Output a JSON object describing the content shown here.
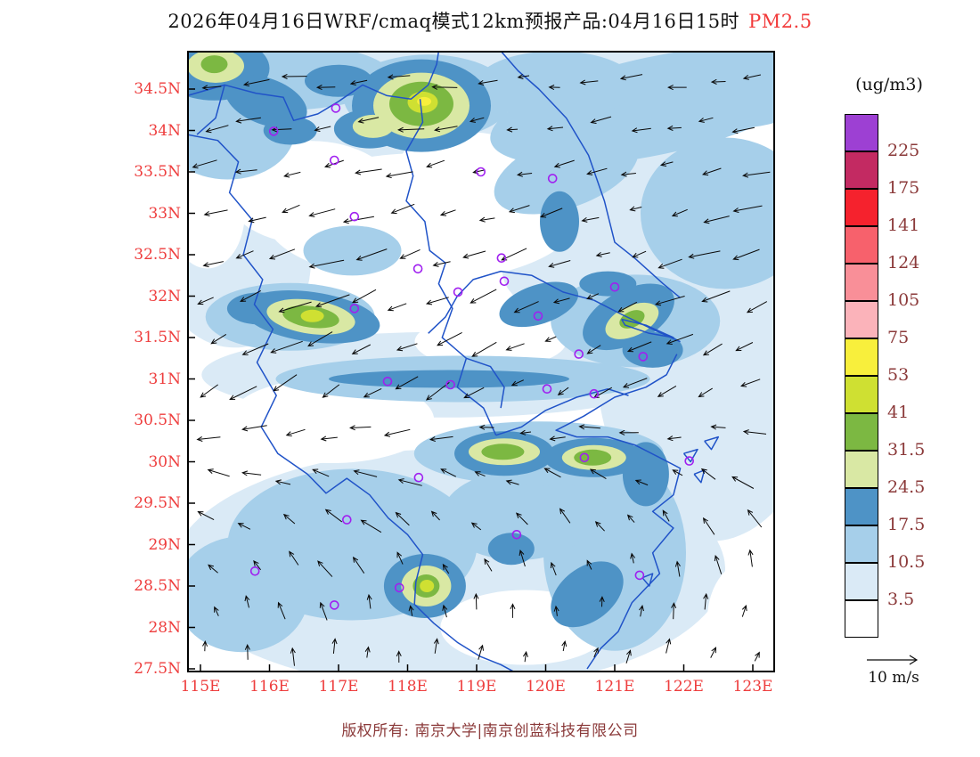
{
  "title": {
    "main": "2026年04月16日WRF/cmaq模式12km预报产品:04月16日15时",
    "pollutant": "PM2.5",
    "pollutant_color": "#f23b3b"
  },
  "footer": {
    "copyright": "版权所有: 南京大学|南京创蓝科技有限公司"
  },
  "axes": {
    "lat_labels": [
      "34.5N",
      "34N",
      "33.5N",
      "33N",
      "32.5N",
      "32N",
      "31.5N",
      "31N",
      "30.5N",
      "30N",
      "29.5N",
      "29N",
      "28.5N",
      "28N",
      "27.5N"
    ],
    "lon_labels": [
      "115E",
      "116E",
      "117E",
      "118E",
      "119E",
      "120E",
      "121E",
      "122E",
      "123E"
    ],
    "label_color": "#ee3d3d"
  },
  "colorbar": {
    "units": "(ug/m3)",
    "label_color": "#8b3a3a",
    "colors_top_to_bottom": [
      "#9d40d3",
      "#c32a62",
      "#f5222d",
      "#f7616c",
      "#f98f98",
      "#fbb3ba",
      "#f8ef3c",
      "#cfe032",
      "#7cb842",
      "#d9e8a4",
      "#4e93c6",
      "#a6cfea",
      "#daeaf6",
      "#ffffff"
    ],
    "labels_top_to_bottom": [
      "225",
      "175",
      "141",
      "124",
      "105",
      "75",
      "53",
      "41",
      "31.5",
      "24.5",
      "17.5",
      "10.5",
      "3.5"
    ]
  },
  "wind_legend": {
    "label": "10 m/s"
  },
  "wind_field": {
    "rows": 14,
    "cols": 15,
    "row_angles": [
      185,
      189,
      193,
      196,
      198,
      202,
      205,
      210,
      185,
      158,
      136,
      116,
      96,
      80
    ],
    "row_col_delta": [
      0,
      0,
      0,
      0,
      0,
      0,
      0,
      -0.5,
      -1,
      -1.5,
      -2,
      -2.5,
      -2.5,
      -2
    ],
    "row_lengths": [
      26,
      26,
      27,
      29,
      33,
      34,
      32,
      30,
      26,
      24,
      22,
      20,
      18,
      17
    ]
  },
  "stations": [
    [
      116.06,
      33.99
    ],
    [
      116.96,
      34.27
    ],
    [
      116.94,
      33.64
    ],
    [
      119.06,
      33.5
    ],
    [
      120.1,
      33.42
    ],
    [
      117.23,
      32.96
    ],
    [
      119.36,
      32.46
    ],
    [
      118.15,
      32.33
    ],
    [
      118.73,
      32.05
    ],
    [
      119.4,
      32.18
    ],
    [
      121.0,
      32.11
    ],
    [
      117.23,
      31.85
    ],
    [
      119.89,
      31.76
    ],
    [
      120.48,
      31.3
    ],
    [
      121.41,
      31.27
    ],
    [
      117.71,
      30.97
    ],
    [
      120.02,
      30.88
    ],
    [
      120.7,
      30.82
    ],
    [
      118.62,
      30.93
    ],
    [
      120.56,
      30.05
    ],
    [
      122.08,
      30.01
    ],
    [
      118.16,
      29.81
    ],
    [
      117.12,
      29.3
    ],
    [
      119.58,
      29.12
    ],
    [
      115.79,
      28.68
    ],
    [
      117.88,
      28.48
    ],
    [
      121.36,
      28.63
    ],
    [
      116.94,
      28.27
    ]
  ],
  "map": {
    "line_color": "#2053c8",
    "level_colors": {
      "white": "#ffffff",
      "pale_blue": "#daeaf6",
      "light_blue": "#a6cfea",
      "steel_blue": "#4e93c6",
      "pale_green": "#d9e8a4",
      "green": "#7cb842",
      "yellow_green": "#cfe032",
      "yellow": "#f8ef3c"
    },
    "fills": [
      [
        119.0,
        34.5,
        345,
        70,
        0,
        "pale_blue"
      ],
      [
        122.4,
        31.3,
        130,
        210,
        0,
        "pale_blue"
      ],
      [
        118.6,
        28.7,
        310,
        135,
        0,
        "pale_blue"
      ],
      [
        118.5,
        31.05,
        270,
        48,
        0,
        "pale_blue"
      ],
      [
        115.5,
        32.4,
        85,
        95,
        0,
        "pale_blue"
      ],
      [
        120.4,
        33.4,
        155,
        65,
        0,
        "pale_blue"
      ],
      [
        116.5,
        33.95,
        120,
        55,
        0,
        "pale_blue"
      ],
      [
        120.6,
        32.3,
        95,
        55,
        0,
        "pale_blue"
      ],
      [
        118.2,
        32.95,
        175,
        72,
        0,
        "white"
      ],
      [
        116.6,
        33.25,
        95,
        58,
        0,
        "white"
      ],
      [
        116.9,
        30.5,
        115,
        48,
        0,
        "white"
      ],
      [
        119.7,
        28.0,
        95,
        42,
        0,
        "white"
      ],
      [
        119.2,
        31.45,
        85,
        30,
        0,
        "white"
      ],
      [
        120.6,
        29.55,
        55,
        28,
        0,
        "white"
      ],
      [
        115.1,
        33.0,
        42,
        62,
        0,
        "white"
      ],
      [
        118.95,
        33.6,
        60,
        35,
        0,
        "white"
      ],
      [
        121.6,
        34.3,
        190,
        55,
        -12,
        "light_blue"
      ],
      [
        122.6,
        33.0,
        95,
        85,
        0,
        "light_blue"
      ],
      [
        122.8,
        34.55,
        85,
        48,
        0,
        "light_blue"
      ],
      [
        116.1,
        34.65,
        130,
        38,
        0,
        "light_blue"
      ],
      [
        118.3,
        34.4,
        95,
        48,
        0,
        "light_blue"
      ],
      [
        120.15,
        34.55,
        90,
        38,
        0,
        "light_blue"
      ],
      [
        120.3,
        33.5,
        85,
        40,
        -20,
        "light_blue"
      ],
      [
        118.8,
        31.0,
        210,
        26,
        0,
        "light_blue"
      ],
      [
        117.2,
        32.55,
        55,
        28,
        0,
        "light_blue"
      ],
      [
        117.2,
        29.0,
        140,
        85,
        0,
        "light_blue"
      ],
      [
        121.0,
        28.9,
        80,
        110,
        0,
        "light_blue"
      ],
      [
        119.6,
        29.35,
        85,
        50,
        0,
        "light_blue"
      ],
      [
        115.6,
        28.4,
        75,
        65,
        0,
        "light_blue"
      ],
      [
        116.3,
        31.75,
        95,
        38,
        0,
        "light_blue"
      ],
      [
        121.3,
        31.7,
        95,
        52,
        0,
        "light_blue"
      ],
      [
        119.9,
        30.1,
        140,
        36,
        0,
        "light_blue"
      ],
      [
        115.4,
        34.0,
        75,
        55,
        0,
        "light_blue"
      ],
      [
        123.05,
        28.1,
        55,
        70,
        0,
        "white"
      ],
      [
        115.2,
        34.75,
        62,
        36,
        0,
        "steel_blue"
      ],
      [
        115.95,
        34.35,
        48,
        26,
        20,
        "steel_blue"
      ],
      [
        117.0,
        34.6,
        38,
        18,
        0,
        "steel_blue"
      ],
      [
        118.2,
        34.3,
        78,
        52,
        0,
        "steel_blue"
      ],
      [
        117.45,
        34.02,
        40,
        22,
        0,
        "steel_blue"
      ],
      [
        116.3,
        34.0,
        30,
        16,
        0,
        "steel_blue"
      ],
      [
        116.6,
        31.75,
        78,
        28,
        8,
        "steel_blue"
      ],
      [
        115.85,
        31.85,
        36,
        18,
        0,
        "steel_blue"
      ],
      [
        118.6,
        31.0,
        135,
        10,
        0,
        "steel_blue"
      ],
      [
        119.9,
        31.9,
        46,
        22,
        -18,
        "steel_blue"
      ],
      [
        120.2,
        32.9,
        22,
        34,
        0,
        "steel_blue"
      ],
      [
        120.9,
        32.15,
        32,
        14,
        0,
        "steel_blue"
      ],
      [
        121.2,
        31.75,
        56,
        30,
        -28,
        "steel_blue"
      ],
      [
        121.55,
        31.35,
        34,
        20,
        0,
        "steel_blue"
      ],
      [
        119.4,
        30.1,
        56,
        25,
        0,
        "steel_blue"
      ],
      [
        120.7,
        30.05,
        56,
        22,
        0,
        "steel_blue"
      ],
      [
        121.45,
        29.85,
        26,
        36,
        0,
        "steel_blue"
      ],
      [
        118.25,
        28.5,
        46,
        36,
        0,
        "steel_blue"
      ],
      [
        120.6,
        28.4,
        46,
        30,
        -38,
        "steel_blue"
      ],
      [
        119.5,
        28.95,
        26,
        18,
        0,
        "steel_blue"
      ],
      [
        118.2,
        34.3,
        54,
        37,
        0,
        "pale_green"
      ],
      [
        116.6,
        31.75,
        50,
        19,
        8,
        "pale_green"
      ],
      [
        119.4,
        30.12,
        40,
        15,
        0,
        "pale_green"
      ],
      [
        120.7,
        30.05,
        36,
        14,
        0,
        "pale_green"
      ],
      [
        118.27,
        28.5,
        28,
        23,
        0,
        "pale_green"
      ],
      [
        115.22,
        34.78,
        32,
        19,
        0,
        "pale_green"
      ],
      [
        117.5,
        34.05,
        23,
        13,
        0,
        "pale_green"
      ],
      [
        121.25,
        31.7,
        32,
        17,
        -25,
        "pale_green"
      ],
      [
        118.2,
        34.32,
        36,
        25,
        0,
        "green"
      ],
      [
        116.6,
        31.75,
        32,
        12,
        8,
        "green"
      ],
      [
        119.38,
        30.12,
        24,
        9,
        0,
        "green"
      ],
      [
        120.68,
        30.05,
        21,
        9,
        0,
        "green"
      ],
      [
        118.27,
        28.5,
        15,
        13,
        0,
        "green"
      ],
      [
        121.25,
        31.72,
        15,
        9,
        -25,
        "green"
      ],
      [
        115.2,
        34.8,
        15,
        10,
        0,
        "green"
      ],
      [
        118.22,
        34.34,
        17,
        12,
        0,
        "yellow_green"
      ],
      [
        116.62,
        31.76,
        13,
        7,
        0,
        "yellow_green"
      ],
      [
        118.28,
        28.5,
        8,
        7,
        0,
        "yellow_green"
      ],
      [
        118.24,
        34.35,
        8,
        5,
        0,
        "yellow"
      ]
    ],
    "lines": [
      [
        [
          119.35,
          34.96
        ],
        [
          119.6,
          34.72
        ],
        [
          119.9,
          34.5
        ],
        [
          120.3,
          34.15
        ],
        [
          120.62,
          33.7
        ],
        [
          120.85,
          33.15
        ],
        [
          121.0,
          32.65
        ],
        [
          121.3,
          32.45
        ],
        [
          121.7,
          32.15
        ],
        [
          121.95,
          31.98
        ]
      ],
      [
        [
          118.3,
          31.55
        ],
        [
          118.55,
          31.75
        ],
        [
          118.72,
          32.0
        ],
        [
          118.95,
          32.2
        ],
        [
          119.35,
          32.3
        ],
        [
          119.8,
          32.25
        ],
        [
          120.25,
          32.05
        ],
        [
          120.7,
          31.95
        ],
        [
          121.1,
          31.78
        ],
        [
          121.55,
          31.6
        ],
        [
          121.95,
          31.45
        ]
      ],
      [
        [
          121.9,
          31.3
        ],
        [
          121.75,
          31.05
        ],
        [
          121.45,
          30.9
        ],
        [
          121.0,
          30.78
        ],
        [
          120.55,
          30.55
        ],
        [
          120.15,
          30.38
        ],
        [
          120.45,
          30.3
        ],
        [
          120.9,
          30.3
        ],
        [
          121.3,
          30.2
        ],
        [
          121.65,
          30.05
        ],
        [
          121.95,
          29.92
        ],
        [
          121.85,
          29.6
        ],
        [
          121.55,
          29.4
        ],
        [
          121.85,
          29.2
        ],
        [
          121.55,
          28.9
        ],
        [
          121.65,
          28.65
        ],
        [
          121.25,
          28.3
        ],
        [
          121.05,
          27.95
        ],
        [
          120.8,
          27.75
        ],
        [
          120.6,
          27.5
        ]
      ],
      [
        [
          114.81,
          34.42
        ],
        [
          115.35,
          34.55
        ],
        [
          115.8,
          34.45
        ],
        [
          116.2,
          34.4
        ],
        [
          116.35,
          34.12
        ],
        [
          116.7,
          34.2
        ],
        [
          117.0,
          34.35
        ],
        [
          117.35,
          34.55
        ],
        [
          117.7,
          34.42
        ],
        [
          118.05,
          34.38
        ],
        [
          118.3,
          34.55
        ],
        [
          118.42,
          34.8
        ],
        [
          118.45,
          34.96
        ]
      ],
      [
        [
          114.81,
          33.95
        ],
        [
          115.25,
          33.88
        ],
        [
          115.55,
          33.62
        ],
        [
          115.42,
          33.25
        ],
        [
          115.75,
          32.92
        ],
        [
          115.62,
          32.5
        ],
        [
          115.9,
          32.2
        ],
        [
          115.78,
          31.9
        ],
        [
          116.05,
          31.6
        ],
        [
          115.82,
          31.2
        ],
        [
          116.1,
          30.8
        ],
        [
          115.88,
          30.42
        ],
        [
          116.12,
          30.1
        ],
        [
          116.55,
          29.85
        ],
        [
          116.82,
          29.62
        ],
        [
          117.12,
          29.8
        ],
        [
          117.45,
          29.6
        ],
        [
          117.72,
          29.32
        ],
        [
          118.0,
          29.12
        ],
        [
          118.22,
          28.88
        ],
        [
          118.12,
          28.55
        ],
        [
          118.1,
          28.28
        ],
        [
          118.38,
          28.05
        ],
        [
          118.72,
          27.82
        ],
        [
          119.05,
          27.65
        ],
        [
          119.35,
          27.55
        ],
        [
          119.55,
          27.46
        ]
      ],
      [
        [
          118.18,
          34.38
        ],
        [
          118.22,
          34.1
        ],
        [
          117.98,
          33.75
        ],
        [
          118.08,
          33.45
        ],
        [
          117.98,
          33.15
        ],
        [
          118.25,
          32.9
        ],
        [
          118.32,
          32.55
        ],
        [
          118.55,
          32.4
        ],
        [
          118.45,
          32.15
        ],
        [
          118.65,
          31.85
        ],
        [
          118.5,
          31.5
        ],
        [
          118.85,
          31.25
        ],
        [
          118.72,
          30.9
        ],
        [
          119.1,
          30.65
        ],
        [
          119.28,
          30.32
        ]
      ],
      [
        [
          119.28,
          30.32
        ],
        [
          119.65,
          30.42
        ],
        [
          120.0,
          30.62
        ],
        [
          120.45,
          30.78
        ],
        [
          120.9,
          30.88
        ],
        [
          121.2,
          30.8
        ]
      ],
      [
        [
          115.35,
          34.55
        ],
        [
          115.22,
          34.15
        ],
        [
          114.95,
          33.95
        ]
      ],
      [
        [
          118.85,
          31.25
        ],
        [
          119.2,
          31.15
        ],
        [
          119.4,
          30.9
        ],
        [
          119.35,
          30.65
        ]
      ]
    ],
    "islands": [
      [
        [
          121.1,
          31.72
        ],
        [
          121.45,
          31.65
        ],
        [
          121.85,
          31.5
        ],
        [
          121.5,
          31.55
        ],
        [
          121.15,
          31.65
        ],
        [
          121.1,
          31.72
        ]
      ],
      [
        [
          122.0,
          30.1
        ],
        [
          122.2,
          30.15
        ],
        [
          122.1,
          30.0
        ],
        [
          122.0,
          30.1
        ]
      ],
      [
        [
          122.3,
          30.25
        ],
        [
          122.5,
          30.3
        ],
        [
          122.4,
          30.15
        ],
        [
          122.3,
          30.25
        ]
      ],
      [
        [
          122.15,
          29.85
        ],
        [
          122.3,
          29.9
        ],
        [
          122.25,
          29.75
        ],
        [
          122.15,
          29.85
        ]
      ],
      [
        [
          121.4,
          28.6
        ],
        [
          121.55,
          28.65
        ],
        [
          121.5,
          28.5
        ],
        [
          121.4,
          28.6
        ]
      ]
    ]
  },
  "chart_data": {
    "type": "heatmap",
    "subtype": "filled-contour map with wind vectors and station markers",
    "title": "2026年04月16日WRF/cmaq模式12km预报产品:04月16日15时 PM2.5",
    "variable": "PM2.5",
    "units": "ug/m3",
    "model": "WRF/CMAQ 12km",
    "forecast_valid": "04月16日15时",
    "x_axis": {
      "range": [
        114.8,
        123.3
      ],
      "ticks": [
        115,
        116,
        117,
        118,
        119,
        120,
        121,
        122,
        123
      ]
    },
    "y_axis": {
      "range": [
        27.46,
        34.96
      ],
      "ticks": [
        27.5,
        28,
        28.5,
        29,
        29.5,
        30,
        30.5,
        31,
        31.5,
        32,
        32.5,
        33,
        33.5,
        34,
        34.5
      ]
    },
    "levels": [
      3.5,
      10.5,
      17.5,
      24.5,
      31.5,
      41,
      53,
      75,
      105,
      124,
      141,
      175,
      225
    ],
    "level_colors_low_to_high": [
      "#ffffff",
      "#daeaf6",
      "#a6cfea",
      "#4e93c6",
      "#d9e8a4",
      "#7cb842",
      "#cfe032",
      "#f8ef3c",
      "#fbb3ba",
      "#f98f98",
      "#f7616c",
      "#f5222d",
      "#c32a62",
      "#9d40d3"
    ],
    "legend_position": "right",
    "wind_reference_ms": 10,
    "hotspots_est": [
      {
        "lon": 118.2,
        "lat": 34.3,
        "peak_est": 55
      },
      {
        "lon": 116.6,
        "lat": 31.75,
        "peak_est": 45
      },
      {
        "lon": 119.4,
        "lat": 30.1,
        "peak_est": 40
      },
      {
        "lon": 120.7,
        "lat": 30.05,
        "peak_est": 40
      },
      {
        "lon": 118.3,
        "lat": 28.5,
        "peak_est": 45
      },
      {
        "lon": 121.3,
        "lat": 31.7,
        "peak_est": 35
      },
      {
        "lon": 115.2,
        "lat": 34.8,
        "peak_est": 35
      }
    ]
  }
}
